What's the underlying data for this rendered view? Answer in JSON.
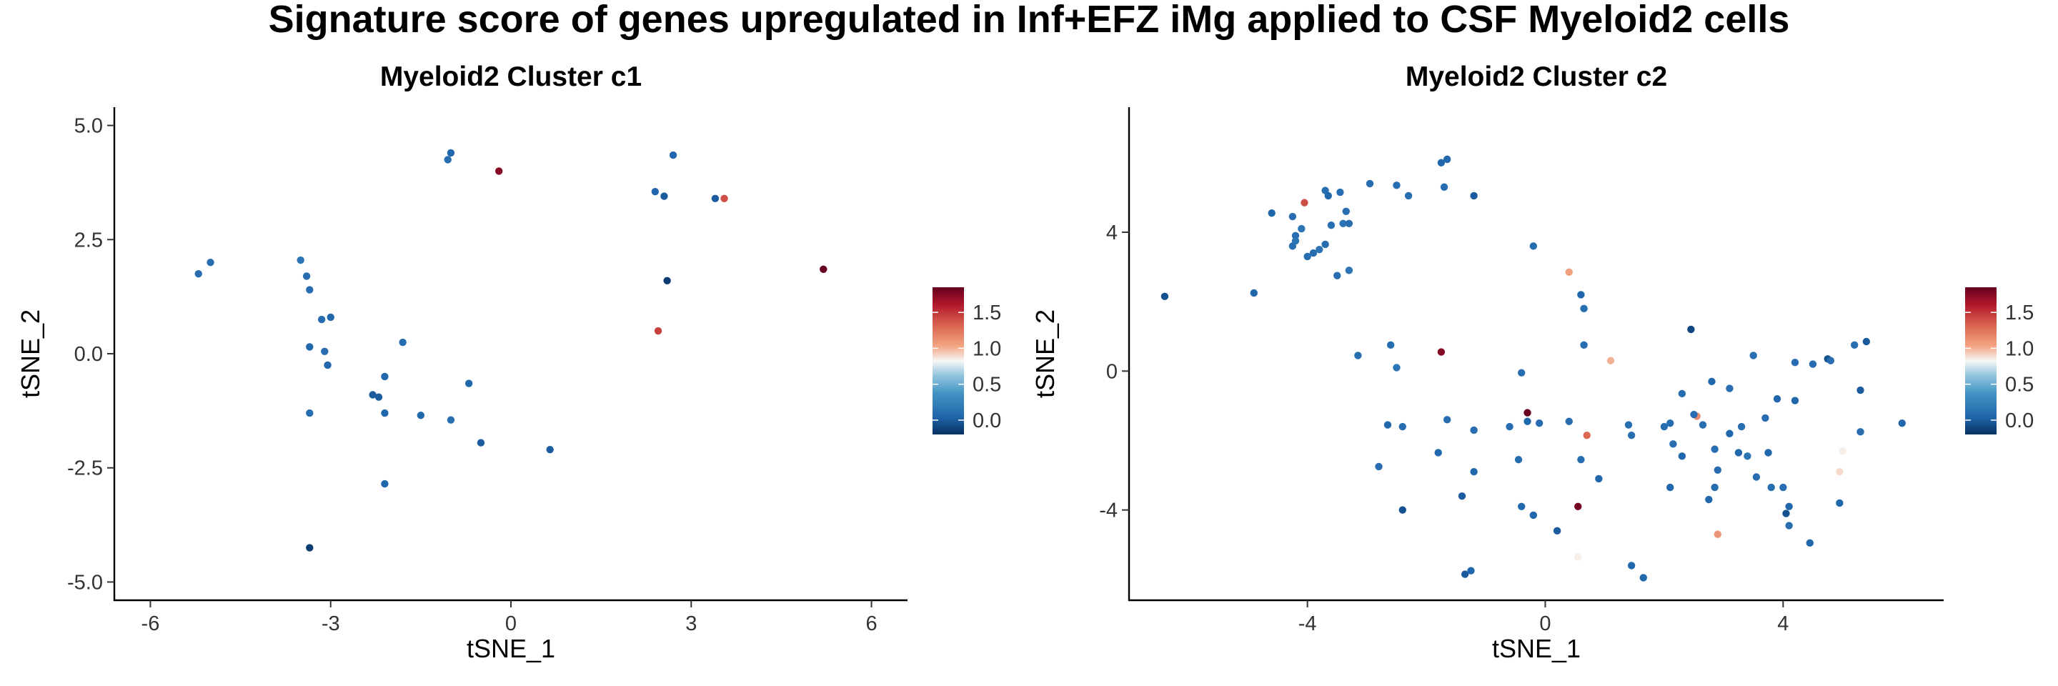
{
  "title": "Signature score of genes upregulated in Inf+EFZ iMg applied to CSF Myeloid2 cells",
  "colorscale": {
    "low": "#053061",
    "mid": "#f7f7f7",
    "high": "#67001f",
    "min": -0.2,
    "max": 1.85
  },
  "legend_ticks": [
    "0.0",
    "0.5",
    "1.0",
    "1.5"
  ],
  "chart_data": [
    {
      "type": "scatter",
      "title": "Myeloid2 Cluster c1",
      "xlabel": "tSNE_1",
      "ylabel": "tSNE_2",
      "xlim": [
        -6.6,
        6.6
      ],
      "ylim": [
        -5.4,
        5.4
      ],
      "xticks": [
        -6,
        -3,
        0,
        3,
        6
      ],
      "xtick_labels": [
        "-6",
        "-3",
        "0",
        "3",
        "6"
      ],
      "yticks": [
        -5,
        -2.5,
        0,
        2.5,
        5
      ],
      "ytick_labels": [
        "-5.0",
        "-2.5",
        "0.0",
        "2.5",
        "5.0"
      ],
      "points": [
        {
          "x": -5.2,
          "y": 1.75,
          "score": 0.1
        },
        {
          "x": -5.0,
          "y": 2.0,
          "score": 0.1
        },
        {
          "x": -3.5,
          "y": 2.05,
          "score": 0.15
        },
        {
          "x": -3.4,
          "y": 1.7,
          "score": 0.1
        },
        {
          "x": -3.35,
          "y": 1.4,
          "score": 0.1
        },
        {
          "x": -3.15,
          "y": 0.75,
          "score": 0.1
        },
        {
          "x": -3.0,
          "y": 0.8,
          "score": 0.05
        },
        {
          "x": -3.35,
          "y": 0.15,
          "score": 0.05
        },
        {
          "x": -3.1,
          "y": 0.05,
          "score": 0.1
        },
        {
          "x": -3.05,
          "y": -0.25,
          "score": 0.05
        },
        {
          "x": -3.35,
          "y": -1.3,
          "score": 0.1
        },
        {
          "x": -3.35,
          "y": -4.25,
          "score": -0.15
        },
        {
          "x": -2.3,
          "y": -0.9,
          "score": 0.0
        },
        {
          "x": -2.2,
          "y": -0.95,
          "score": 0.0
        },
        {
          "x": -2.1,
          "y": -0.5,
          "score": 0.05
        },
        {
          "x": -2.1,
          "y": -1.3,
          "score": 0.05
        },
        {
          "x": -2.1,
          "y": -2.85,
          "score": 0.05
        },
        {
          "x": -1.8,
          "y": 0.25,
          "score": 0.1
        },
        {
          "x": -1.5,
          "y": -1.35,
          "score": 0.05
        },
        {
          "x": -1.0,
          "y": 4.4,
          "score": 0.05
        },
        {
          "x": -1.05,
          "y": 4.25,
          "score": 0.1
        },
        {
          "x": -1.0,
          "y": -1.45,
          "score": 0.1
        },
        {
          "x": -0.7,
          "y": -0.65,
          "score": 0.05
        },
        {
          "x": -0.5,
          "y": -1.95,
          "score": 0.0
        },
        {
          "x": -0.2,
          "y": 4.0,
          "score": 1.75
        },
        {
          "x": 0.65,
          "y": -2.1,
          "score": 0.0
        },
        {
          "x": 2.4,
          "y": 3.55,
          "score": 0.05
        },
        {
          "x": 2.55,
          "y": 3.45,
          "score": 0.0
        },
        {
          "x": 2.7,
          "y": 4.35,
          "score": 0.05
        },
        {
          "x": 2.6,
          "y": 1.6,
          "score": -0.15
        },
        {
          "x": 2.45,
          "y": 0.5,
          "score": 1.45
        },
        {
          "x": 3.4,
          "y": 3.4,
          "score": 0.0
        },
        {
          "x": 3.55,
          "y": 3.4,
          "score": 1.4
        },
        {
          "x": 5.2,
          "y": 1.85,
          "score": 1.85
        }
      ]
    },
    {
      "type": "scatter",
      "title": "Myeloid2 Cluster c2",
      "xlabel": "tSNE_1",
      "ylabel": "tSNE_2",
      "xlim": [
        -7.0,
        6.7
      ],
      "ylim": [
        -6.6,
        7.6
      ],
      "xticks": [
        -4,
        0,
        4
      ],
      "xtick_labels": [
        "-4",
        "0",
        "4"
      ],
      "yticks": [
        -4,
        0,
        4
      ],
      "ytick_labels": [
        "-4",
        "0",
        "4"
      ],
      "points": [
        {
          "x": -6.4,
          "y": 2.15,
          "score": -0.05
        },
        {
          "x": -4.9,
          "y": 2.25,
          "score": 0.05
        },
        {
          "x": -4.6,
          "y": 4.55,
          "score": 0.05
        },
        {
          "x": -4.25,
          "y": 4.45,
          "score": 0.1
        },
        {
          "x": -4.05,
          "y": 4.85,
          "score": 1.4
        },
        {
          "x": -4.1,
          "y": 4.1,
          "score": 0.15
        },
        {
          "x": -4.2,
          "y": 3.9,
          "score": 0.1
        },
        {
          "x": -4.25,
          "y": 3.6,
          "score": 0.1
        },
        {
          "x": -4.2,
          "y": 3.75,
          "score": 0.15
        },
        {
          "x": -3.9,
          "y": 3.4,
          "score": 0.1
        },
        {
          "x": -4.0,
          "y": 3.3,
          "score": 0.1
        },
        {
          "x": -3.8,
          "y": 3.5,
          "score": 0.15
        },
        {
          "x": -3.7,
          "y": 3.65,
          "score": 0.1
        },
        {
          "x": -3.7,
          "y": 5.2,
          "score": 0.1
        },
        {
          "x": -3.65,
          "y": 5.05,
          "score": 0.05
        },
        {
          "x": -3.6,
          "y": 4.2,
          "score": 0.1
        },
        {
          "x": -3.4,
          "y": 4.25,
          "score": 0.15
        },
        {
          "x": -3.45,
          "y": 5.15,
          "score": 0.1
        },
        {
          "x": -3.35,
          "y": 4.6,
          "score": 0.1
        },
        {
          "x": -3.3,
          "y": 4.25,
          "score": 0.1
        },
        {
          "x": -3.5,
          "y": 2.75,
          "score": 0.1
        },
        {
          "x": -3.3,
          "y": 2.9,
          "score": 0.15
        },
        {
          "x": -3.15,
          "y": 0.45,
          "score": 0.1
        },
        {
          "x": -2.95,
          "y": 5.4,
          "score": 0.1
        },
        {
          "x": -2.5,
          "y": 5.35,
          "score": 0.1
        },
        {
          "x": -2.3,
          "y": 5.05,
          "score": 0.1
        },
        {
          "x": -1.75,
          "y": 6.0,
          "score": 0.05
        },
        {
          "x": -1.65,
          "y": 6.1,
          "score": 0.05
        },
        {
          "x": -1.7,
          "y": 5.3,
          "score": 0.1
        },
        {
          "x": -1.2,
          "y": 5.05,
          "score": 0.0
        },
        {
          "x": -2.6,
          "y": 0.75,
          "score": 0.1
        },
        {
          "x": -2.5,
          "y": 0.1,
          "score": 0.15
        },
        {
          "x": -2.65,
          "y": -1.55,
          "score": 0.05
        },
        {
          "x": -2.4,
          "y": -1.6,
          "score": 0.1
        },
        {
          "x": -2.8,
          "y": -2.75,
          "score": 0.1
        },
        {
          "x": -2.4,
          "y": -4.0,
          "score": -0.05
        },
        {
          "x": -1.75,
          "y": 0.55,
          "score": 1.75
        },
        {
          "x": -1.65,
          "y": -1.4,
          "score": 0.1
        },
        {
          "x": -1.8,
          "y": -2.35,
          "score": 0.05
        },
        {
          "x": -1.4,
          "y": -3.6,
          "score": 0.0
        },
        {
          "x": -1.2,
          "y": -1.7,
          "score": 0.1
        },
        {
          "x": -1.2,
          "y": -2.9,
          "score": 0.05
        },
        {
          "x": -1.35,
          "y": -5.85,
          "score": 0.0
        },
        {
          "x": -1.25,
          "y": -5.75,
          "score": 0.05
        },
        {
          "x": -0.6,
          "y": -1.6,
          "score": 0.1
        },
        {
          "x": -0.4,
          "y": -0.05,
          "score": 0.1
        },
        {
          "x": -0.45,
          "y": -2.55,
          "score": 0.1
        },
        {
          "x": -0.4,
          "y": -3.9,
          "score": 0.05
        },
        {
          "x": -0.2,
          "y": 3.6,
          "score": 0.1
        },
        {
          "x": -0.3,
          "y": -1.2,
          "score": 1.85
        },
        {
          "x": -0.3,
          "y": -1.45,
          "score": 0.05
        },
        {
          "x": -0.1,
          "y": -1.5,
          "score": 0.1
        },
        {
          "x": -0.2,
          "y": -4.15,
          "score": 0.05
        },
        {
          "x": 0.2,
          "y": -4.6,
          "score": 0.0
        },
        {
          "x": 0.4,
          "y": -1.45,
          "score": 0.1
        },
        {
          "x": 0.4,
          "y": 2.85,
          "score": 1.05
        },
        {
          "x": 0.6,
          "y": 2.2,
          "score": 0.05
        },
        {
          "x": 0.65,
          "y": 1.8,
          "score": 0.1
        },
        {
          "x": 0.65,
          "y": 0.75,
          "score": 0.1
        },
        {
          "x": 0.55,
          "y": -5.35,
          "score": 0.85
        },
        {
          "x": 0.55,
          "y": -3.9,
          "score": 1.8
        },
        {
          "x": 0.7,
          "y": -1.85,
          "score": 1.3
        },
        {
          "x": 0.6,
          "y": -2.55,
          "score": 0.1
        },
        {
          "x": 0.9,
          "y": -3.1,
          "score": 0.05
        },
        {
          "x": 1.1,
          "y": 0.3,
          "score": 1.0
        },
        {
          "x": 1.4,
          "y": -1.55,
          "score": 0.1
        },
        {
          "x": 1.45,
          "y": -1.85,
          "score": 0.1
        },
        {
          "x": 1.45,
          "y": -5.6,
          "score": 0.05
        },
        {
          "x": 1.65,
          "y": -5.95,
          "score": 0.05
        },
        {
          "x": 2.1,
          "y": -1.5,
          "score": 0.1
        },
        {
          "x": 2.0,
          "y": -1.6,
          "score": 0.1
        },
        {
          "x": 2.15,
          "y": -2.1,
          "score": 0.1
        },
        {
          "x": 2.1,
          "y": -3.35,
          "score": 0.05
        },
        {
          "x": 2.3,
          "y": -0.65,
          "score": 0.1
        },
        {
          "x": 2.3,
          "y": -2.45,
          "score": 0.05
        },
        {
          "x": 2.45,
          "y": 1.2,
          "score": -0.1
        },
        {
          "x": 2.55,
          "y": -1.3,
          "score": 1.15
        },
        {
          "x": 2.65,
          "y": -1.55,
          "score": 0.1
        },
        {
          "x": 2.5,
          "y": -1.25,
          "score": 0.1
        },
        {
          "x": 2.75,
          "y": -3.7,
          "score": 0.05
        },
        {
          "x": 2.85,
          "y": -2.25,
          "score": 0.1
        },
        {
          "x": 2.9,
          "y": -4.7,
          "score": 1.1
        },
        {
          "x": 2.85,
          "y": -3.35,
          "score": 0.1
        },
        {
          "x": 2.8,
          "y": -0.3,
          "score": 0.05
        },
        {
          "x": 2.9,
          "y": -2.85,
          "score": 0.1
        },
        {
          "x": 3.1,
          "y": -0.5,
          "score": 0.1
        },
        {
          "x": 3.1,
          "y": -1.8,
          "score": 0.05
        },
        {
          "x": 3.25,
          "y": -2.35,
          "score": 0.05
        },
        {
          "x": 3.4,
          "y": -2.45,
          "score": 0.15
        },
        {
          "x": 3.5,
          "y": 0.45,
          "score": 0.1
        },
        {
          "x": 3.3,
          "y": -1.6,
          "score": 0.1
        },
        {
          "x": 3.55,
          "y": -3.05,
          "score": 0.1
        },
        {
          "x": 3.7,
          "y": -1.35,
          "score": 0.1
        },
        {
          "x": 3.75,
          "y": -2.35,
          "score": 0.05
        },
        {
          "x": 3.8,
          "y": -3.35,
          "score": 0.1
        },
        {
          "x": 3.9,
          "y": -0.8,
          "score": 0.05
        },
        {
          "x": 4.0,
          "y": -3.35,
          "score": 0.1
        },
        {
          "x": 4.1,
          "y": -3.9,
          "score": 0.05
        },
        {
          "x": 4.05,
          "y": -4.1,
          "score": -0.05
        },
        {
          "x": 4.1,
          "y": -4.45,
          "score": 0.1
        },
        {
          "x": 4.2,
          "y": 0.25,
          "score": 0.1
        },
        {
          "x": 4.2,
          "y": -0.85,
          "score": 0.05
        },
        {
          "x": 4.45,
          "y": -4.95,
          "score": 0.05
        },
        {
          "x": 4.5,
          "y": 0.2,
          "score": 0.1
        },
        {
          "x": 4.75,
          "y": 0.35,
          "score": -0.05
        },
        {
          "x": 4.8,
          "y": 0.3,
          "score": 0.1
        },
        {
          "x": 5.0,
          "y": -2.3,
          "score": 0.85
        },
        {
          "x": 4.95,
          "y": -2.9,
          "score": 0.9
        },
        {
          "x": 4.95,
          "y": -3.8,
          "score": 0.05
        },
        {
          "x": 5.2,
          "y": 0.75,
          "score": 0.1
        },
        {
          "x": 5.4,
          "y": 0.85,
          "score": 0.0
        },
        {
          "x": 5.3,
          "y": -0.55,
          "score": 0.0
        },
        {
          "x": 5.3,
          "y": -1.75,
          "score": 0.1
        },
        {
          "x": 6.0,
          "y": -1.5,
          "score": 0.05
        }
      ]
    }
  ]
}
